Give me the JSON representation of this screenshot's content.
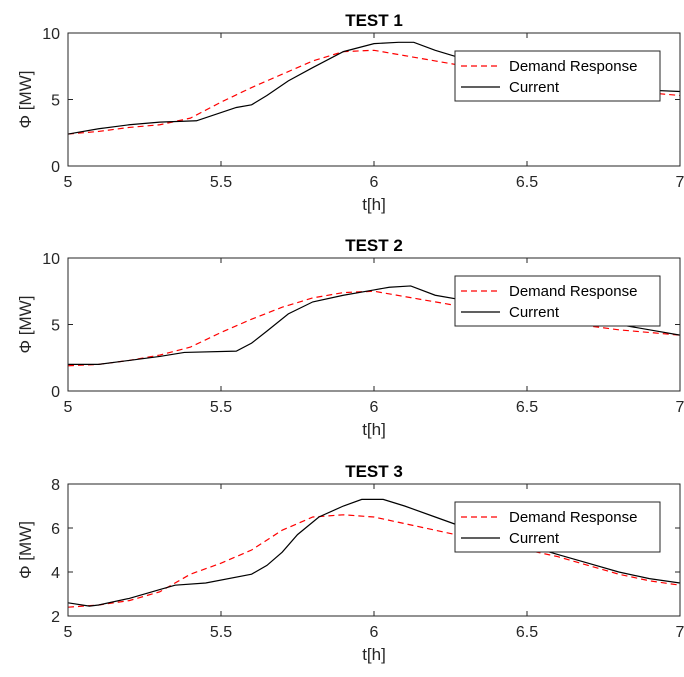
{
  "chart_data": [
    {
      "type": "line",
      "title": "TEST 1",
      "xlabel": "t[h]",
      "ylabel": "Φ [MW]",
      "xlim": [
        5,
        7
      ],
      "ylim": [
        0,
        10
      ],
      "xticks": [
        5,
        5.5,
        6,
        6.5,
        7
      ],
      "xtick_labels": [
        "5",
        "5.5",
        "6",
        "6.5",
        "7"
      ],
      "yticks": [
        0,
        5,
        10
      ],
      "ytick_labels": [
        "0",
        "5",
        "10"
      ],
      "grid": false,
      "legend": "top-right",
      "series": [
        {
          "name": "Demand Response",
          "color": "#ff0000",
          "style": "dashed",
          "x": [
            5,
            5.1,
            5.2,
            5.3,
            5.4,
            5.5,
            5.6,
            5.7,
            5.8,
            5.9,
            6,
            6.1,
            6.2,
            6.3,
            6.4,
            6.5,
            6.6,
            6.7,
            6.8,
            6.9,
            7
          ],
          "y": [
            2.4,
            2.6,
            2.9,
            3.1,
            3.6,
            4.8,
            5.9,
            6.9,
            7.9,
            8.6,
            8.7,
            8.3,
            7.9,
            7.5,
            7.1,
            6.7,
            6.3,
            6.0,
            5.7,
            5.5,
            5.3
          ]
        },
        {
          "name": "Current",
          "color": "#000000",
          "style": "solid",
          "x": [
            5,
            5.1,
            5.2,
            5.3,
            5.42,
            5.55,
            5.6,
            5.65,
            5.72,
            5.8,
            5.9,
            6,
            6.08,
            6.13,
            6.2,
            6.3,
            6.4,
            6.5,
            6.6,
            6.7,
            6.8,
            6.9,
            7
          ],
          "y": [
            2.4,
            2.8,
            3.1,
            3.3,
            3.4,
            4.4,
            4.6,
            5.3,
            6.4,
            7.4,
            8.6,
            9.2,
            9.3,
            9.3,
            8.7,
            8.0,
            7.5,
            7.0,
            6.6,
            6.2,
            5.9,
            5.7,
            5.6
          ]
        }
      ]
    },
    {
      "type": "line",
      "title": "TEST 2",
      "xlabel": "t[h]",
      "ylabel": "Φ [MW]",
      "xlim": [
        5,
        7
      ],
      "ylim": [
        0,
        10
      ],
      "xticks": [
        5,
        5.5,
        6,
        6.5,
        7
      ],
      "xtick_labels": [
        "5",
        "5.5",
        "6",
        "6.5",
        "7"
      ],
      "yticks": [
        0,
        5,
        10
      ],
      "ytick_labels": [
        "0",
        "5",
        "10"
      ],
      "grid": false,
      "legend": "top-right",
      "series": [
        {
          "name": "Demand Response",
          "color": "#ff0000",
          "style": "dashed",
          "x": [
            5,
            5.1,
            5.2,
            5.3,
            5.4,
            5.5,
            5.6,
            5.7,
            5.8,
            5.9,
            6,
            6.1,
            6.2,
            6.3,
            6.4,
            6.5,
            6.6,
            6.7,
            6.8,
            6.9,
            7
          ],
          "y": [
            1.9,
            2.0,
            2.3,
            2.7,
            3.3,
            4.4,
            5.4,
            6.3,
            7.0,
            7.4,
            7.5,
            7.1,
            6.7,
            6.3,
            5.9,
            5.5,
            5.2,
            4.9,
            4.6,
            4.4,
            4.2
          ]
        },
        {
          "name": "Current",
          "color": "#000000",
          "style": "solid",
          "x": [
            5,
            5.1,
            5.2,
            5.3,
            5.38,
            5.55,
            5.6,
            5.65,
            5.72,
            5.8,
            5.9,
            6,
            6.05,
            6.12,
            6.2,
            6.3,
            6.4,
            6.5,
            6.6,
            6.7,
            6.8,
            6.9,
            7
          ],
          "y": [
            2.0,
            2.0,
            2.3,
            2.6,
            2.9,
            3.0,
            3.6,
            4.5,
            5.8,
            6.7,
            7.2,
            7.6,
            7.8,
            7.9,
            7.2,
            6.8,
            6.4,
            6.0,
            5.6,
            5.3,
            5.0,
            4.6,
            4.2
          ]
        }
      ]
    },
    {
      "type": "line",
      "title": "TEST 3",
      "xlabel": "t[h]",
      "ylabel": "Φ [MW]",
      "xlim": [
        5,
        7
      ],
      "ylim": [
        2,
        8
      ],
      "xticks": [
        5,
        5.5,
        6,
        6.5,
        7
      ],
      "xtick_labels": [
        "5",
        "5.5",
        "6",
        "6.5",
        "7"
      ],
      "yticks": [
        2,
        4,
        6,
        8
      ],
      "ytick_labels": [
        "2",
        "4",
        "6",
        "8"
      ],
      "grid": false,
      "legend": "top-right",
      "series": [
        {
          "name": "Demand Response",
          "color": "#ff0000",
          "style": "dashed",
          "x": [
            5,
            5.1,
            5.2,
            5.3,
            5.4,
            5.5,
            5.6,
            5.7,
            5.8,
            5.9,
            6,
            6.1,
            6.2,
            6.3,
            6.4,
            6.5,
            6.6,
            6.7,
            6.8,
            6.9,
            7
          ],
          "y": [
            2.4,
            2.5,
            2.7,
            3.1,
            3.9,
            4.4,
            5.0,
            5.9,
            6.5,
            6.6,
            6.5,
            6.2,
            5.9,
            5.6,
            5.3,
            5.0,
            4.7,
            4.3,
            3.9,
            3.6,
            3.4
          ]
        },
        {
          "name": "Current",
          "color": "#000000",
          "style": "solid",
          "x": [
            5,
            5.07,
            5.1,
            5.2,
            5.3,
            5.35,
            5.45,
            5.6,
            5.65,
            5.7,
            5.75,
            5.82,
            5.9,
            5.96,
            6.03,
            6.1,
            6.2,
            6.3,
            6.4,
            6.5,
            6.6,
            6.7,
            6.8,
            6.9,
            7
          ],
          "y": [
            2.6,
            2.45,
            2.5,
            2.8,
            3.2,
            3.4,
            3.5,
            3.9,
            4.3,
            4.9,
            5.7,
            6.5,
            7.0,
            7.3,
            7.3,
            7.0,
            6.5,
            6.0,
            5.6,
            5.2,
            4.8,
            4.4,
            4.0,
            3.7,
            3.5
          ]
        }
      ]
    }
  ]
}
